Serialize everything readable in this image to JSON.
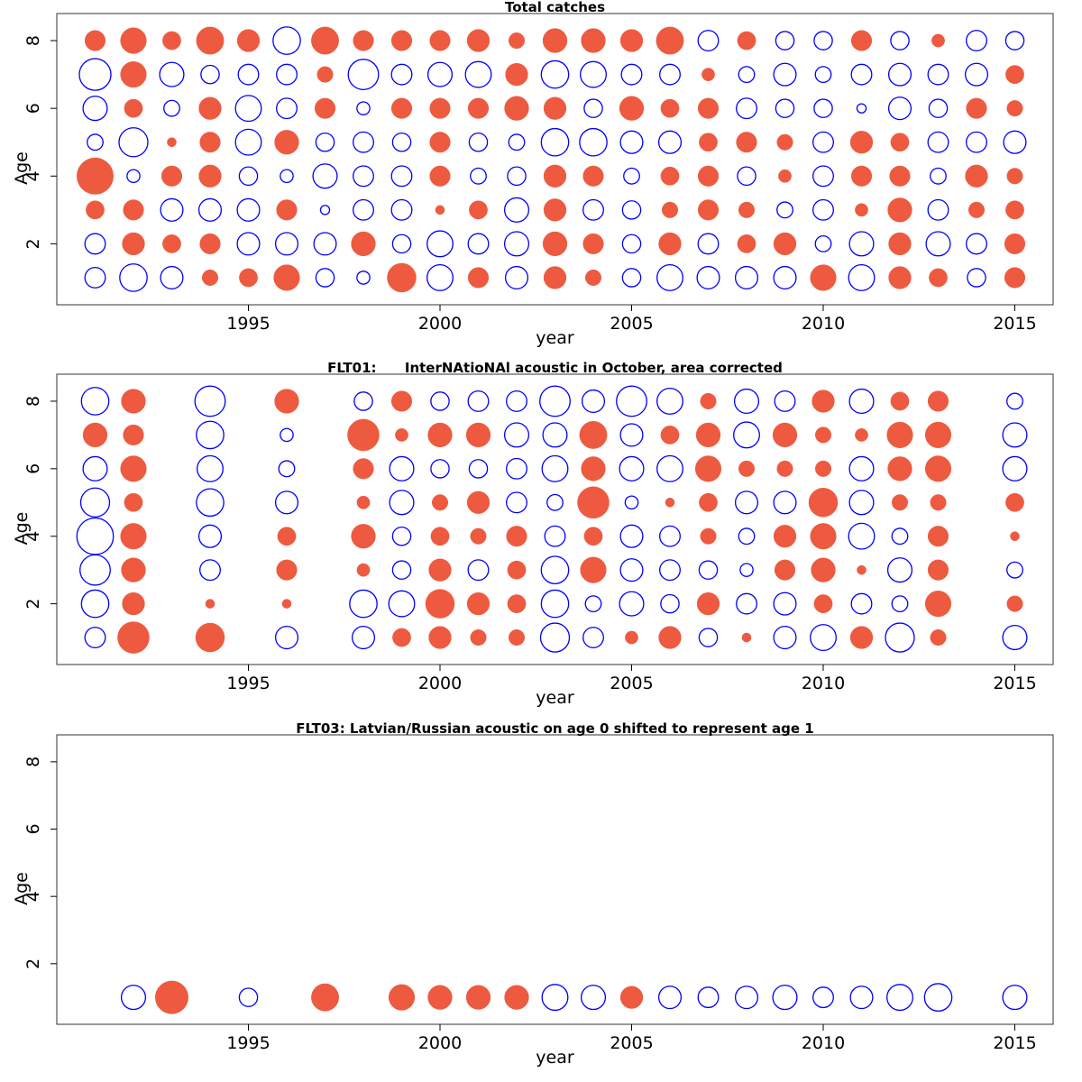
{
  "colors": {
    "positive": "#EE5A3F",
    "negative": "#0000FF"
  },
  "chart_data": [
    {
      "type": "bubble",
      "title": "Total catches",
      "xlabel": "year",
      "ylabel": "Age",
      "xlim": [
        1990,
        2016
      ],
      "ylim": [
        0.2,
        8.8
      ],
      "xticks": [
        1995,
        2000,
        2005,
        2010,
        2015
      ],
      "yticks": [
        2,
        4,
        6,
        8
      ],
      "ages": [
        1,
        2,
        3,
        4,
        5,
        6,
        7,
        8
      ],
      "years": [
        1991,
        1992,
        1993,
        1994,
        1995,
        1996,
        1997,
        1998,
        1999,
        2000,
        2001,
        2002,
        2003,
        2004,
        2005,
        2006,
        2007,
        2008,
        2009,
        2010,
        2011,
        2012,
        2013,
        2014,
        2015
      ],
      "residuals_by_year": [
        [
          -0.5,
          -0.5,
          0.4,
          1.6,
          -0.3,
          -0.7,
          -1.2,
          0.5
        ],
        [
          -0.9,
          0.6,
          0.5,
          -0.2,
          -1.0,
          0.4,
          0.8,
          0.8
        ],
        [
          -0.6,
          0.4,
          -0.6,
          0.5,
          0.1,
          -0.3,
          -0.7,
          0.4
        ],
        [
          0.3,
          0.5,
          -0.6,
          0.6,
          0.5,
          0.6,
          -0.4,
          0.9
        ],
        [
          0.4,
          -0.6,
          -0.6,
          -0.4,
          -0.8,
          -0.8,
          -0.5,
          0.6
        ],
        [
          0.8,
          -0.6,
          0.5,
          -0.2,
          0.7,
          -0.5,
          -0.5,
          -0.9
        ],
        [
          -0.4,
          -0.6,
          -0.1,
          -0.7,
          -0.4,
          0.5,
          0.3,
          0.9
        ],
        [
          -0.2,
          0.7,
          -0.5,
          -0.5,
          -0.5,
          -0.2,
          -1.1,
          0.5
        ],
        [
          1.0,
          -0.4,
          -0.5,
          -0.5,
          -0.4,
          0.5,
          -0.5,
          0.5
        ],
        [
          -0.8,
          -0.8,
          0.1,
          0.5,
          0.5,
          0.5,
          -0.7,
          0.5
        ],
        [
          0.5,
          -0.5,
          0.4,
          -0.3,
          -0.4,
          0.5,
          -0.8,
          0.6
        ],
        [
          -0.6,
          -0.7,
          -0.7,
          -0.4,
          -0.3,
          0.7,
          0.6,
          0.3
        ],
        [
          0.6,
          0.7,
          0.6,
          0.6,
          -0.9,
          0.6,
          -0.9,
          0.7
        ],
        [
          0.3,
          0.5,
          -0.5,
          0.5,
          -0.9,
          -0.4,
          -0.8,
          0.7
        ],
        [
          -0.4,
          -0.4,
          -0.4,
          -0.3,
          -0.6,
          0.7,
          -0.5,
          0.6
        ],
        [
          -0.8,
          0.6,
          0.3,
          0.4,
          -0.6,
          0.4,
          -0.5,
          0.9
        ],
        [
          -0.6,
          -0.5,
          0.5,
          0.5,
          0.4,
          0.5,
          0.2,
          -0.5
        ],
        [
          -0.6,
          0.4,
          0.3,
          -0.4,
          0.5,
          -0.5,
          -0.3,
          0.4
        ],
        [
          -0.6,
          0.6,
          -0.3,
          0.2,
          0.3,
          -0.4,
          -0.6,
          -0.4
        ],
        [
          0.8,
          -0.3,
          -0.5,
          -0.5,
          -0.5,
          -0.4,
          -0.3,
          -0.4
        ],
        [
          -0.8,
          -0.7,
          0.2,
          0.5,
          0.6,
          -0.1,
          -0.5,
          0.5
        ],
        [
          0.6,
          0.6,
          0.7,
          0.5,
          0.4,
          -0.6,
          -0.6,
          -0.4
        ],
        [
          0.4,
          -0.7,
          -0.5,
          -0.3,
          -0.5,
          -0.4,
          -0.5,
          0.2
        ],
        [
          -0.4,
          -0.5,
          0.3,
          0.6,
          -0.5,
          0.5,
          -0.6,
          -0.5
        ],
        [
          0.5,
          0.5,
          0.4,
          0.3,
          -0.6,
          0.3,
          0.4,
          -0.4
        ]
      ]
    },
    {
      "type": "bubble",
      "title": "FLT01:      InterNAtioNAl acoustic in October, area corrected",
      "xlabel": "year",
      "ylabel": "Age",
      "xlim": [
        1990,
        2016
      ],
      "ylim": [
        0.2,
        8.8
      ],
      "xticks": [
        1995,
        2000,
        2005,
        2010,
        2015
      ],
      "yticks": [
        2,
        4,
        6,
        8
      ],
      "ages": [
        1,
        2,
        3,
        4,
        5,
        6,
        7,
        8
      ],
      "years": [
        1991,
        1992,
        1994,
        1996,
        1998,
        1999,
        2000,
        2001,
        2002,
        2003,
        2004,
        2005,
        2006,
        2007,
        2008,
        2009,
        2010,
        2011,
        2012,
        2013,
        2015
      ],
      "residuals_by_year": [
        [
          -0.5,
          -0.9,
          -1.1,
          -1.6,
          -1.0,
          -0.7,
          0.7,
          -0.9
        ],
        [
          1.2,
          0.6,
          0.7,
          0.8,
          0.4,
          0.8,
          0.5,
          0.7
        ],
        [
          1.0,
          0.1,
          -0.5,
          -0.6,
          -0.9,
          -0.8,
          -0.9,
          -1.1
        ],
        [
          -0.6,
          0.1,
          0.5,
          0.4,
          -0.6,
          -0.3,
          -0.2,
          0.7
        ],
        [
          -0.6,
          -0.9,
          0.2,
          0.7,
          0.2,
          0.5,
          1.2,
          -0.4
        ],
        [
          0.4,
          -0.8,
          -0.4,
          -0.4,
          -0.7,
          -0.7,
          0.2,
          0.5
        ],
        [
          0.6,
          1.0,
          0.6,
          0.4,
          0.3,
          -0.4,
          0.7,
          -0.4
        ],
        [
          0.3,
          0.6,
          -0.5,
          0.3,
          0.6,
          -0.4,
          0.7,
          -0.5
        ],
        [
          0.3,
          0.4,
          0.4,
          0.5,
          -0.5,
          -0.5,
          -0.7,
          -0.5
        ],
        [
          -1.0,
          -0.9,
          -0.9,
          -0.5,
          -0.3,
          -0.8,
          -0.7,
          -1.1
        ],
        [
          -0.5,
          -0.3,
          0.8,
          0.4,
          1.2,
          0.7,
          0.9,
          -0.6
        ],
        [
          0.2,
          -0.7,
          -0.6,
          -0.6,
          -0.2,
          -0.7,
          -0.6,
          -1.1
        ],
        [
          0.6,
          -0.4,
          -0.5,
          -0.5,
          0.1,
          -0.8,
          0.4,
          -0.8
        ],
        [
          -0.4,
          0.6,
          -0.4,
          0.3,
          0.4,
          0.8,
          0.7,
          0.3
        ],
        [
          0.1,
          -0.5,
          -0.2,
          -0.3,
          -0.6,
          0.3,
          -0.8,
          -0.7
        ],
        [
          -0.6,
          -0.6,
          0.5,
          0.6,
          -0.6,
          0.3,
          0.7,
          -0.5
        ],
        [
          -0.8,
          0.4,
          0.7,
          0.8,
          1.0,
          0.3,
          0.3,
          0.6
        ],
        [
          0.6,
          -0.5,
          0.1,
          -0.8,
          -0.7,
          -0.7,
          0.2,
          -0.7
        ],
        [
          -1.0,
          -0.3,
          -0.7,
          -0.3,
          0.3,
          0.7,
          0.8,
          0.4
        ],
        [
          0.3,
          0.8,
          0.5,
          0.5,
          0.3,
          0.8,
          0.8,
          0.5
        ],
        [
          -0.7,
          0.3,
          -0.3,
          0.1,
          0.4,
          -0.7,
          -0.7,
          -0.3
        ]
      ]
    },
    {
      "type": "bubble",
      "title": "FLT03: Latvian/Russian acoustic on age 0 shifted to represent age 1",
      "xlabel": "year",
      "ylabel": "Age",
      "xlim": [
        1990,
        2016
      ],
      "ylim": [
        0.2,
        8.8
      ],
      "xticks": [
        1995,
        2000,
        2005,
        2010,
        2015
      ],
      "yticks": [
        2,
        4,
        6,
        8
      ],
      "ages": [
        1
      ],
      "years": [
        1992,
        1993,
        1995,
        1997,
        1999,
        2000,
        2001,
        2002,
        2003,
        2004,
        2005,
        2006,
        2007,
        2008,
        2009,
        2010,
        2011,
        2012,
        2013,
        2015
      ],
      "residuals_by_year": [
        [
          -0.7
        ],
        [
          1.3
        ],
        [
          -0.4
        ],
        [
          0.9
        ],
        [
          0.8
        ],
        [
          0.7
        ],
        [
          0.7
        ],
        [
          0.7
        ],
        [
          -0.8
        ],
        [
          -0.7
        ],
        [
          0.6
        ],
        [
          -0.6
        ],
        [
          -0.5
        ],
        [
          -0.6
        ],
        [
          -0.7
        ],
        [
          -0.5
        ],
        [
          -0.6
        ],
        [
          -0.8
        ],
        [
          -0.9
        ],
        [
          -0.7
        ]
      ]
    }
  ]
}
